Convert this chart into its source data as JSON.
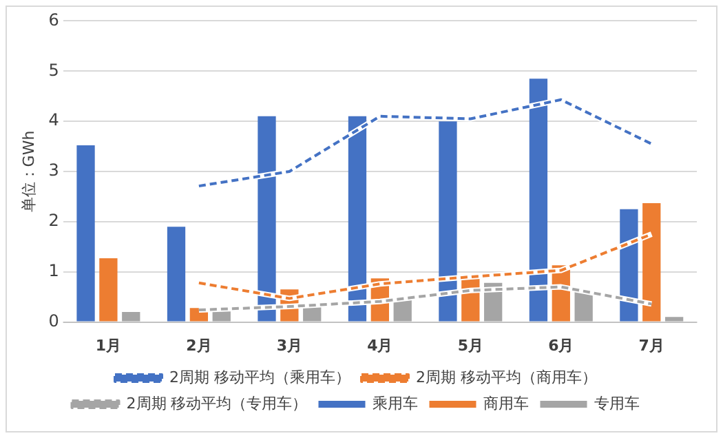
{
  "chart_data": {
    "type": "bar",
    "ylabel": "单位：GWh",
    "categories": [
      "1月",
      "2月",
      "3月",
      "4月",
      "5月",
      "6月",
      "7月"
    ],
    "ylim": [
      0,
      6
    ],
    "yticks": [
      0,
      1,
      2,
      3,
      4,
      5,
      6
    ],
    "grid": "y",
    "legend": "bottom",
    "series": [
      {
        "name": "乘用车",
        "color": "#4472c4",
        "values": [
          3.52,
          1.9,
          4.1,
          4.1,
          4.0,
          4.85,
          2.25
        ]
      },
      {
        "name": "商用车",
        "color": "#ed7d31",
        "values": [
          1.27,
          0.28,
          0.65,
          0.87,
          0.93,
          1.13,
          2.37
        ]
      },
      {
        "name": "专用车",
        "color": "#a5a5a5",
        "values": [
          0.2,
          0.28,
          0.33,
          0.48,
          0.78,
          0.62,
          0.1
        ]
      },
      {
        "name": "2周期 移动平均（乘用车）",
        "type": "line",
        "line_style": "dashed",
        "marker": "none",
        "color": "#4472c4",
        "values": [
          null,
          2.71,
          3.0,
          4.1,
          4.05,
          4.43,
          3.55
        ]
      },
      {
        "name": "2周期 移动平均（商用车）",
        "type": "line",
        "line_style": "dashed",
        "marker": "none",
        "color": "#ed7d31",
        "values": [
          null,
          0.78,
          0.47,
          0.76,
          0.9,
          1.03,
          1.75
        ]
      },
      {
        "name": "2周期 移动平均（专用车）",
        "type": "line",
        "line_style": "dashed",
        "marker": "none",
        "color": "#a5a5a5",
        "values": [
          null,
          0.24,
          0.31,
          0.41,
          0.63,
          0.7,
          0.36
        ]
      }
    ]
  }
}
